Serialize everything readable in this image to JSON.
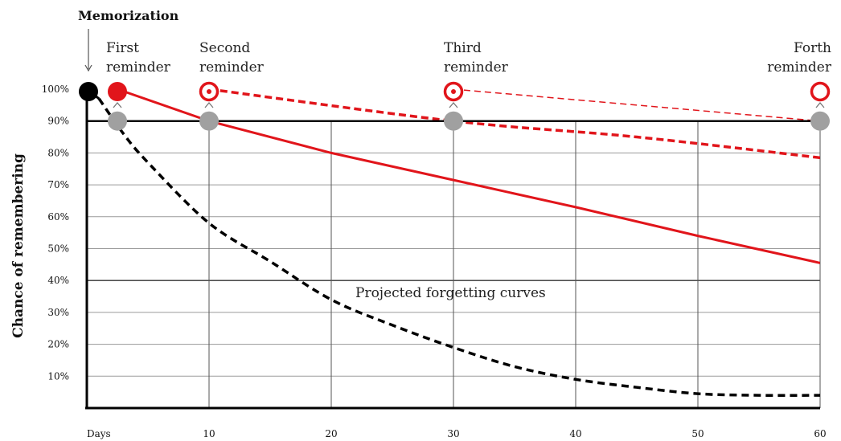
{
  "chart_data": {
    "type": "line",
    "title": "Memorization",
    "ylabel": "Chance of remembering",
    "xlabel": "Days",
    "annotation": "Projected forgetting curves",
    "xlim": [
      0,
      60
    ],
    "ylim": [
      0,
      100
    ],
    "x_ticks": [
      {
        "value": 10,
        "label": "10"
      },
      {
        "value": 20,
        "label": "20"
      },
      {
        "value": 30,
        "label": "30"
      },
      {
        "value": 40,
        "label": "40"
      },
      {
        "value": 50,
        "label": "50"
      },
      {
        "value": 60,
        "label": "60"
      }
    ],
    "y_ticks": [
      {
        "value": 10,
        "label": "10%"
      },
      {
        "value": 20,
        "label": "20%"
      },
      {
        "value": 30,
        "label": "30%"
      },
      {
        "value": 40,
        "label": "40%"
      },
      {
        "value": 50,
        "label": "50%"
      },
      {
        "value": 60,
        "label": "60%"
      },
      {
        "value": 70,
        "label": "70%"
      },
      {
        "value": 80,
        "label": "80%"
      },
      {
        "value": 90,
        "label": "90%"
      },
      {
        "value": 100,
        "label": "100%"
      }
    ],
    "threshold": 90,
    "memorization_point": {
      "x": 0,
      "y": 100
    },
    "reminders": [
      {
        "label_lines": [
          "First",
          "reminder"
        ],
        "x": 2.5,
        "y": 100,
        "drop_y": 90,
        "style": "filled"
      },
      {
        "label_lines": [
          "Second",
          "reminder"
        ],
        "x": 10,
        "y": 100,
        "drop_y": 90,
        "style": "ring-dot"
      },
      {
        "label_lines": [
          "Third",
          "reminder"
        ],
        "x": 30,
        "y": 100,
        "drop_y": 90,
        "style": "ring-dot"
      },
      {
        "label_lines": [
          "Forth",
          "reminder"
        ],
        "x": 60,
        "y": 100,
        "drop_y": 90,
        "style": "ring"
      }
    ],
    "series": [
      {
        "style": "black-dashed",
        "color": "#000000",
        "points": [
          [
            0,
            100
          ],
          [
            1,
            97
          ],
          [
            3,
            86
          ],
          [
            5,
            77
          ],
          [
            10,
            58
          ],
          [
            15,
            46
          ],
          [
            20,
            34
          ],
          [
            25,
            26
          ],
          [
            30,
            19
          ],
          [
            35,
            13
          ],
          [
            40,
            9
          ],
          [
            45,
            6.5
          ],
          [
            50,
            4.5
          ],
          [
            55,
            4
          ],
          [
            60,
            4
          ]
        ]
      },
      {
        "style": "red-solid",
        "color": "#e1151b",
        "points": [
          [
            2.5,
            100
          ],
          [
            10,
            90
          ],
          [
            20,
            80
          ],
          [
            30,
            71.5
          ],
          [
            40,
            63
          ],
          [
            50,
            54
          ],
          [
            60,
            45.5
          ]
        ]
      },
      {
        "style": "red-dashed",
        "color": "#e1151b",
        "points": [
          [
            10,
            100
          ],
          [
            30,
            90
          ],
          [
            45,
            85
          ],
          [
            60,
            78.5
          ]
        ]
      },
      {
        "style": "red-dashed-thin",
        "color": "#e1151b",
        "points": [
          [
            30,
            100
          ],
          [
            60,
            90
          ]
        ]
      }
    ],
    "colors": {
      "red": "#e1151b",
      "gray": "#a0a0a0",
      "black": "#000000"
    }
  }
}
